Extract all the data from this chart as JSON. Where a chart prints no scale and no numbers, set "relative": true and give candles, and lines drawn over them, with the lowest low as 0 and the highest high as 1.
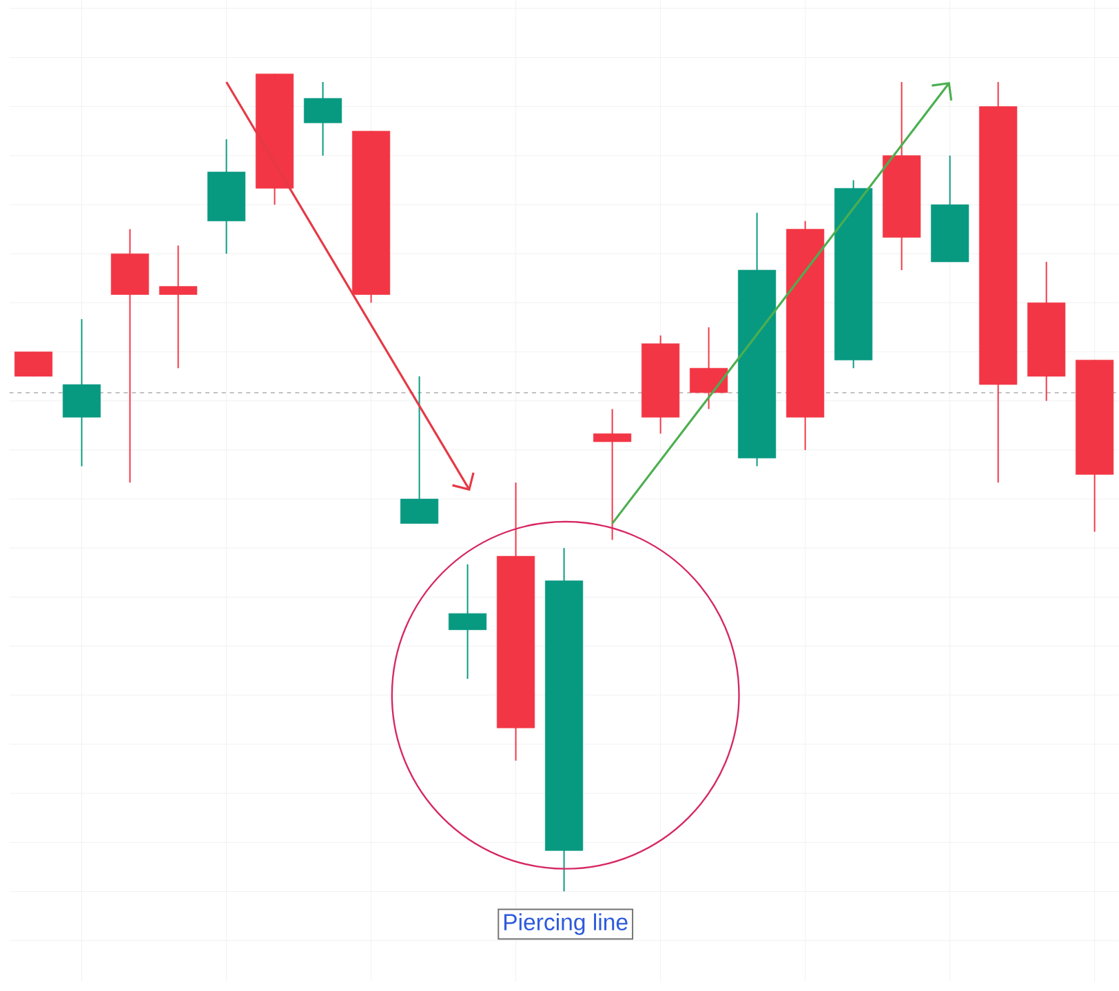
{
  "chart_data": {
    "type": "candlestick",
    "relative": true,
    "grid": true,
    "categories": [
      null,
      null,
      null,
      null,
      null,
      null,
      null,
      null,
      null,
      null,
      null,
      null,
      null,
      null,
      null,
      null,
      null,
      null,
      null,
      null,
      null,
      null,
      null
    ],
    "ohlc": [
      [
        0.66,
        0.66,
        0.63,
        0.63
      ],
      [
        0.58,
        0.7,
        0.52,
        0.62
      ],
      [
        0.78,
        0.81,
        0.5,
        0.73
      ],
      [
        0.74,
        0.79,
        0.64,
        0.73
      ],
      [
        0.82,
        0.92,
        0.78,
        0.88
      ],
      [
        1.0,
        1.0,
        0.84,
        0.86
      ],
      [
        0.94,
        0.99,
        0.9,
        0.97
      ],
      [
        0.93,
        0.93,
        0.72,
        0.73
      ],
      [
        0.45,
        0.63,
        0.45,
        0.48
      ],
      [
        0.32,
        0.4,
        0.26,
        0.34
      ],
      [
        0.41,
        0.5,
        0.16,
        0.2
      ],
      [
        0.05,
        0.42,
        0.0,
        0.38
      ],
      [
        0.56,
        0.59,
        0.43,
        0.55
      ],
      [
        0.67,
        0.68,
        0.56,
        0.58
      ],
      [
        0.64,
        0.69,
        0.59,
        0.61
      ],
      [
        0.53,
        0.83,
        0.52,
        0.76
      ],
      [
        0.81,
        0.82,
        0.54,
        0.58
      ],
      [
        0.65,
        0.87,
        0.64,
        0.86
      ],
      [
        0.9,
        0.99,
        0.76,
        0.8
      ],
      [
        0.77,
        0.9,
        0.77,
        0.84
      ],
      [
        0.96,
        0.99,
        0.5,
        0.62
      ],
      [
        0.72,
        0.77,
        0.6,
        0.63
      ],
      [
        0.65,
        0.65,
        0.44,
        0.51
      ]
    ],
    "colors": [
      "#f23645",
      "#089981",
      "#f23645",
      "#f23645",
      "#089981",
      "#f23645",
      "#089981",
      "#f23645",
      "#089981",
      "#089981",
      "#f23645",
      "#089981",
      "#f23645",
      "#f23645",
      "#f23645",
      "#089981",
      "#f23645",
      "#089981",
      "#f23645",
      "#089981",
      "#f23645",
      "#f23645",
      "#f23645"
    ],
    "ref_lines": [
      {
        "axis": "y",
        "value": 0.61,
        "color": "#9e9e9e",
        "line_style": "dashed"
      }
    ],
    "annotations": [
      "Piercing line"
    ]
  }
}
